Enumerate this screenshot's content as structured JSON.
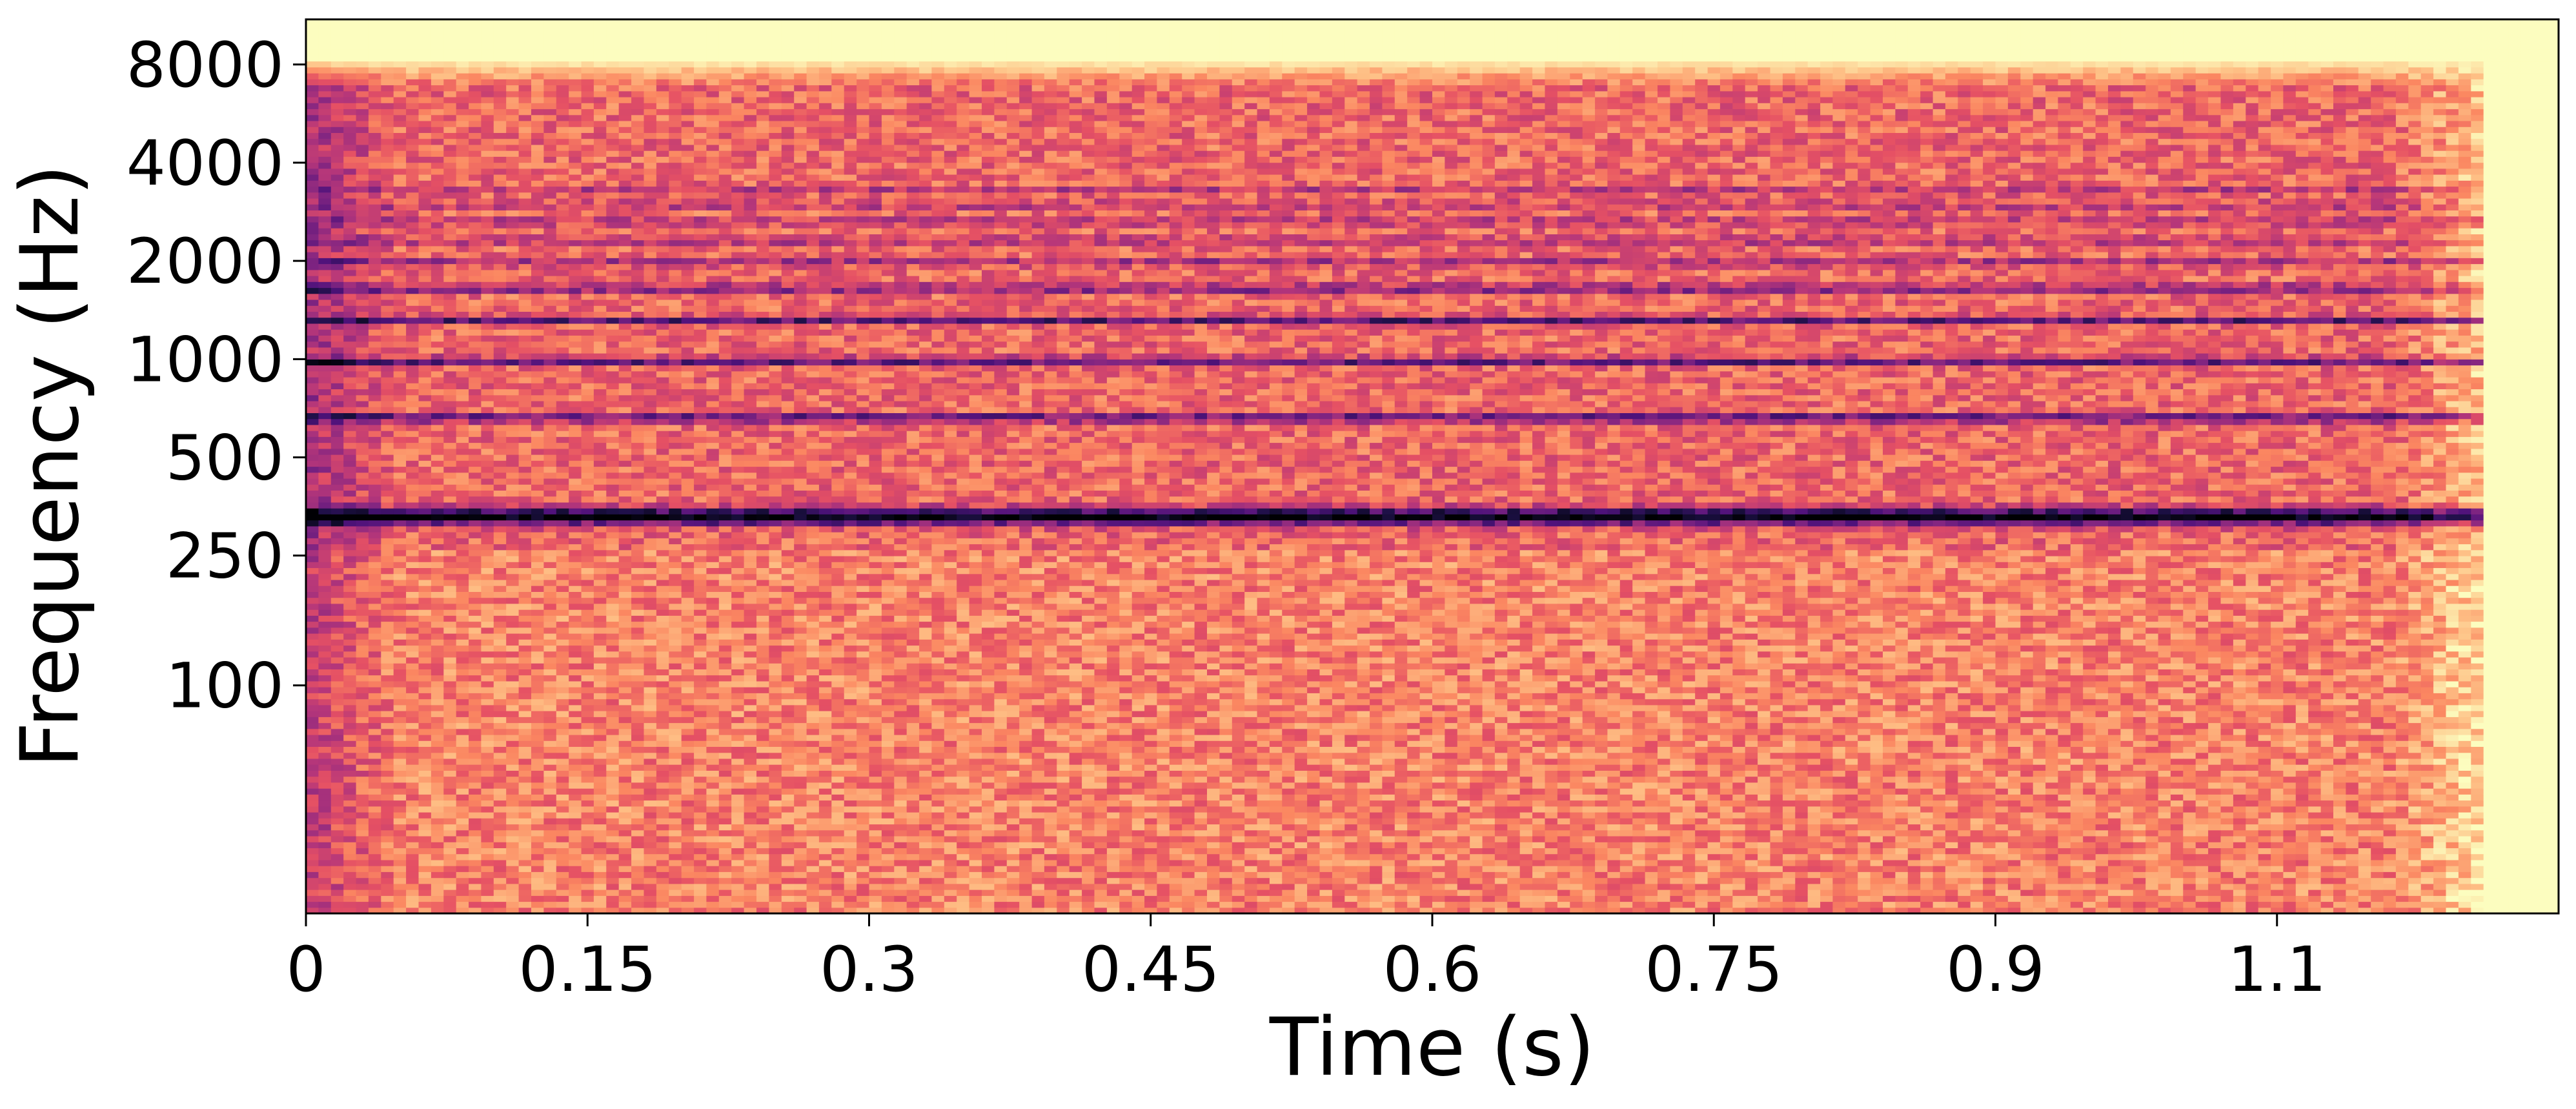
{
  "chart_data": {
    "type": "heatmap",
    "subtype": "spectrogram",
    "title": "",
    "xlabel": "Time (s)",
    "ylabel": "Frequency (Hz)",
    "xlim": [
      0,
      1.2
    ],
    "ylim": [
      20,
      11000
    ],
    "y_scale": "log",
    "grid": false,
    "colormap": "magma",
    "x_ticks": [
      0,
      0.15,
      0.3,
      0.45,
      0.6,
      0.75,
      0.9,
      1.05
    ],
    "x_tick_labels": [
      "0",
      "0.15",
      "0.3",
      "0.45",
      "0.6",
      "0.75",
      "0.9",
      "1.1"
    ],
    "y_ticks": [
      100,
      250,
      500,
      1000,
      2000,
      4000,
      8000
    ],
    "y_tick_labels": [
      "100",
      "250",
      "500",
      "1000",
      "2000",
      "4000",
      "8000"
    ],
    "signal_end_time": 1.16,
    "harmonics": [
      {
        "frequency": 330,
        "strength": 1.0
      },
      {
        "frequency": 660,
        "strength": 0.72
      },
      {
        "frequency": 990,
        "strength": 0.65
      },
      {
        "frequency": 1320,
        "strength": 0.6
      },
      {
        "frequency": 1650,
        "strength": 0.55
      },
      {
        "frequency": 1980,
        "strength": 0.35
      },
      {
        "frequency": 2310,
        "strength": 0.3
      },
      {
        "frequency": 2640,
        "strength": 0.28
      },
      {
        "frequency": 2970,
        "strength": 0.26
      },
      {
        "frequency": 3300,
        "strength": 0.24
      }
    ],
    "colors": {
      "background": "#fcfdbf",
      "low": "#fde2a5",
      "mid": "#f1605d",
      "high": "#8c2981",
      "peak": "#000004"
    }
  }
}
